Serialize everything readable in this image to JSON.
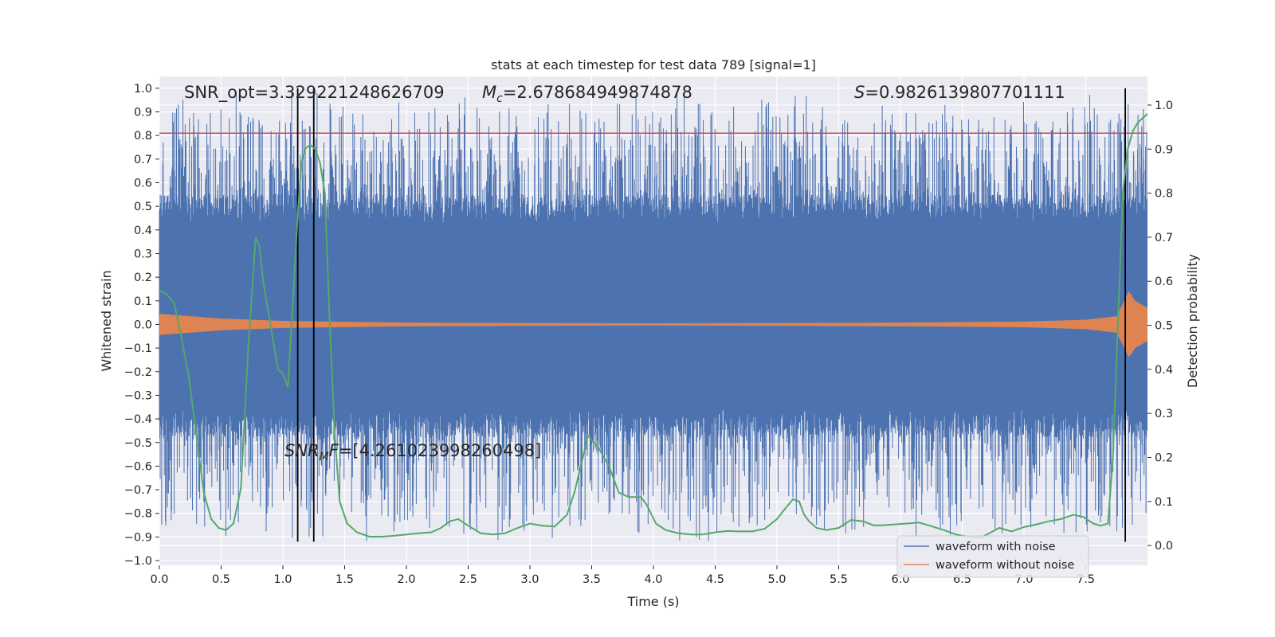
{
  "chart_data": {
    "type": "line",
    "title": "stats at each timestep for test data 789 [signal=1]",
    "xlabel": "Time (s)",
    "ylabel": "Whitened strain",
    "y2label": "Detection probability",
    "xlim": [
      0.0,
      8.0
    ],
    "ylim": [
      -1.02,
      1.05
    ],
    "y2lim": [
      -0.045,
      1.065
    ],
    "xticks": [
      "0.0",
      "0.5",
      "1.0",
      "1.5",
      "2.0",
      "2.5",
      "3.0",
      "3.5",
      "4.0",
      "4.5",
      "5.0",
      "5.5",
      "6.0",
      "6.5",
      "7.0",
      "7.5"
    ],
    "xtick_values": [
      0.0,
      0.5,
      1.0,
      1.5,
      2.0,
      2.5,
      3.0,
      3.5,
      4.0,
      4.5,
      5.0,
      5.5,
      6.0,
      6.5,
      7.0,
      7.5
    ],
    "yticks": [
      "1.0",
      "0.9",
      "0.8",
      "0.7",
      "0.6",
      "0.5",
      "0.4",
      "0.3",
      "0.2",
      "0.1",
      "0.0",
      "−0.1",
      "−0.2",
      "−0.3",
      "−0.4",
      "−0.5",
      "−0.6",
      "−0.7",
      "−0.8",
      "−0.9",
      "−1.0"
    ],
    "ytick_values": [
      1.0,
      0.9,
      0.8,
      0.7,
      0.6,
      0.5,
      0.4,
      0.3,
      0.2,
      0.1,
      0.0,
      -0.1,
      -0.2,
      -0.3,
      -0.4,
      -0.5,
      -0.6,
      -0.7,
      -0.8,
      -0.9,
      -1.0
    ],
    "y2ticks": [
      "1.0",
      "0.9",
      "0.8",
      "0.7",
      "0.6",
      "0.5",
      "0.4",
      "0.3",
      "0.2",
      "0.1",
      "0.0"
    ],
    "y2tick_values": [
      1.0,
      0.9,
      0.8,
      0.7,
      0.6,
      0.5,
      0.4,
      0.3,
      0.2,
      0.1,
      0.0
    ],
    "grid": true,
    "legend_position": "lower-right",
    "series": [
      {
        "name": "waveform with noise",
        "color": "#4c72b0",
        "axis": "left",
        "band_core": [
          -0.36,
          0.43
        ],
        "spike_extent": [
          -0.92,
          0.98
        ]
      },
      {
        "name": "waveform without noise",
        "color": "#dd8452",
        "axis": "left",
        "amplitude_envelope": {
          "x": [
            0.0,
            0.5,
            1.0,
            2.0,
            3.0,
            4.0,
            5.0,
            6.0,
            7.0,
            7.5,
            7.75,
            7.85,
            7.9,
            8.0
          ],
          "y": [
            0.045,
            0.025,
            0.015,
            0.008,
            0.006,
            0.005,
            0.006,
            0.008,
            0.012,
            0.02,
            0.035,
            0.14,
            0.1,
            0.07
          ]
        }
      },
      {
        "name": "detection probability",
        "color": "#55a868",
        "axis": "right",
        "x": [
          0.0,
          0.06,
          0.12,
          0.18,
          0.24,
          0.3,
          0.36,
          0.42,
          0.48,
          0.54,
          0.6,
          0.66,
          0.72,
          0.78,
          0.81,
          0.84,
          0.9,
          0.96,
          1.0,
          1.04,
          1.08,
          1.12,
          1.15,
          1.18,
          1.22,
          1.26,
          1.3,
          1.34,
          1.38,
          1.42,
          1.46,
          1.52,
          1.6,
          1.7,
          1.8,
          1.9,
          2.0,
          2.1,
          2.2,
          2.28,
          2.35,
          2.42,
          2.5,
          2.6,
          2.7,
          2.8,
          2.9,
          3.0,
          3.1,
          3.2,
          3.3,
          3.36,
          3.42,
          3.47,
          3.5,
          3.56,
          3.64,
          3.72,
          3.8,
          3.9,
          3.95,
          4.02,
          4.1,
          4.2,
          4.3,
          4.4,
          4.5,
          4.6,
          4.7,
          4.8,
          4.9,
          5.0,
          5.07,
          5.13,
          5.18,
          5.22,
          5.26,
          5.32,
          5.4,
          5.5,
          5.6,
          5.7,
          5.78,
          5.85,
          5.95,
          6.05,
          6.15,
          6.25,
          6.35,
          6.45,
          6.55,
          6.65,
          6.72,
          6.8,
          6.9,
          7.0,
          7.1,
          7.2,
          7.3,
          7.4,
          7.48,
          7.56,
          7.62,
          7.68,
          7.72,
          7.76,
          7.8,
          7.84,
          7.88,
          7.92,
          7.96,
          8.0
        ],
        "y": [
          0.58,
          0.57,
          0.55,
          0.47,
          0.38,
          0.25,
          0.12,
          0.06,
          0.04,
          0.035,
          0.05,
          0.13,
          0.45,
          0.7,
          0.68,
          0.6,
          0.5,
          0.4,
          0.39,
          0.36,
          0.55,
          0.75,
          0.87,
          0.9,
          0.91,
          0.9,
          0.87,
          0.8,
          0.5,
          0.25,
          0.1,
          0.05,
          0.03,
          0.02,
          0.02,
          0.022,
          0.025,
          0.028,
          0.03,
          0.04,
          0.055,
          0.06,
          0.045,
          0.028,
          0.025,
          0.028,
          0.04,
          0.05,
          0.045,
          0.043,
          0.07,
          0.12,
          0.19,
          0.25,
          0.24,
          0.22,
          0.18,
          0.12,
          0.11,
          0.11,
          0.09,
          0.05,
          0.035,
          0.028,
          0.025,
          0.025,
          0.03,
          0.033,
          0.032,
          0.032,
          0.038,
          0.06,
          0.085,
          0.105,
          0.1,
          0.07,
          0.055,
          0.04,
          0.035,
          0.04,
          0.058,
          0.055,
          0.046,
          0.046,
          0.048,
          0.05,
          0.052,
          0.044,
          0.035,
          0.025,
          0.02,
          0.018,
          0.028,
          0.04,
          0.032,
          0.042,
          0.048,
          0.055,
          0.06,
          0.07,
          0.065,
          0.05,
          0.045,
          0.05,
          0.2,
          0.5,
          0.8,
          0.9,
          0.94,
          0.96,
          0.97,
          0.98
        ]
      }
    ],
    "hlines": [
      {
        "y": 0.81,
        "axis": "left",
        "color": "#c44e52"
      }
    ],
    "vlines": [
      {
        "x": 1.12,
        "color": "#000000"
      },
      {
        "x": 1.25,
        "color": "#000000"
      },
      {
        "x": 7.82,
        "color": "#000000"
      }
    ],
    "annotations": {
      "snr_opt": "SNR_opt=3.329221248626709",
      "mc_symbol": "M",
      "mc_sub": "c",
      "mc_value": "=2.678684949874878",
      "s_symbol": "S",
      "s_value": "=0.9826139807701111",
      "snr_mf_symbol": "SNR",
      "snr_mf_sub": "M",
      "snr_mf_sym2": "F",
      "snr_mf_value": "=[4.261023998260498]"
    }
  }
}
